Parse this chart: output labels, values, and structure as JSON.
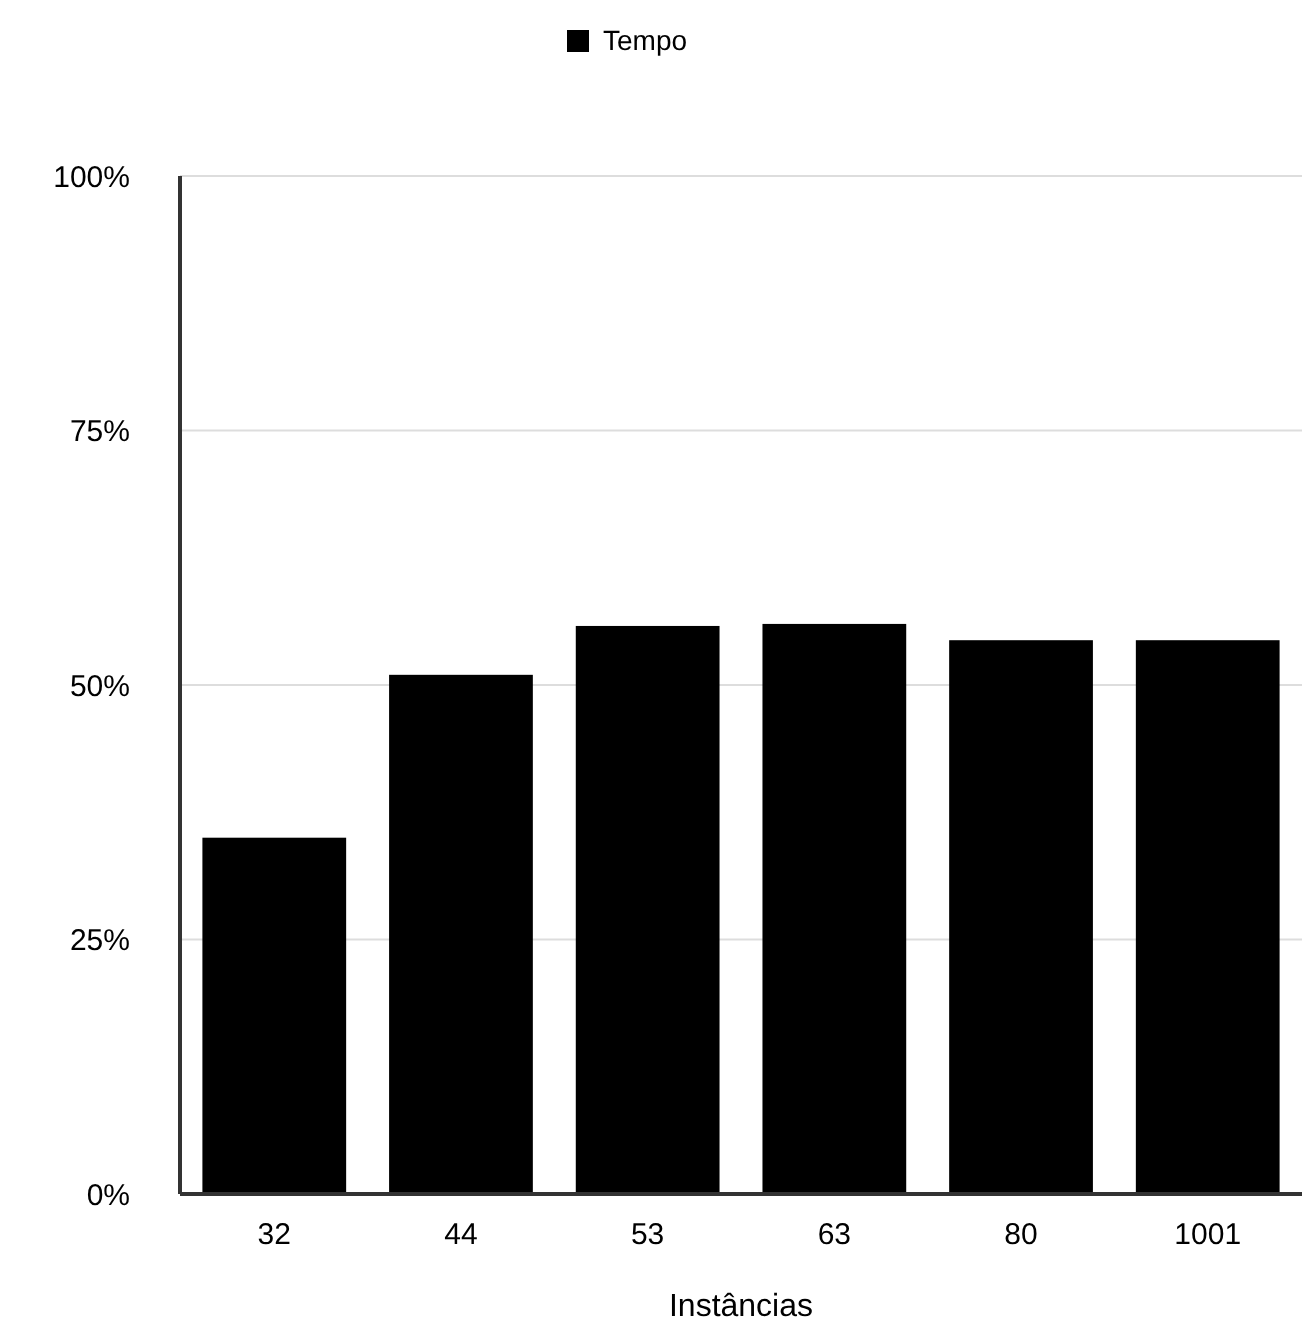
{
  "chart_data": {
    "type": "bar",
    "xlabel": "Instâncias",
    "categories": [
      "32",
      "44",
      "53",
      "63",
      "80",
      "1001"
    ],
    "series": [
      {
        "name": "Tempo",
        "color": "#000000",
        "values": [
          35,
          51,
          55.8,
          56,
          54.4,
          54.4
        ]
      }
    ],
    "ylim": [
      0,
      100
    ],
    "yticks": [
      {
        "value": 0,
        "label": "0%"
      },
      {
        "value": 25,
        "label": "25%"
      },
      {
        "value": 50,
        "label": "50%"
      },
      {
        "value": 75,
        "label": "75%"
      },
      {
        "value": 100,
        "label": "100%"
      }
    ],
    "grid": "y",
    "legend": "top"
  }
}
